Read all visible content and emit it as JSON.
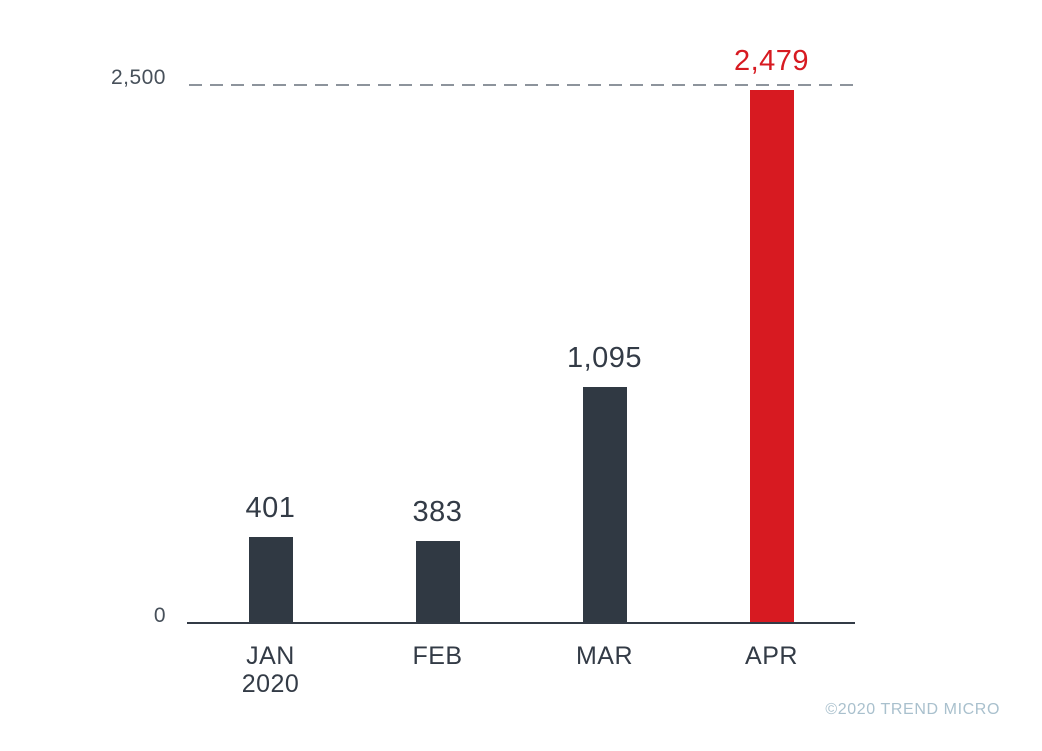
{
  "chart_data": {
    "type": "bar",
    "title": "",
    "xlabel": "",
    "ylabel": "",
    "categories": [
      [
        "JAN",
        "2020"
      ],
      [
        "FEB"
      ],
      [
        "MAR"
      ],
      [
        "APR"
      ]
    ],
    "values": [
      401,
      383,
      1095,
      2479
    ],
    "value_labels": [
      "401",
      "383",
      "1,095",
      "2,479"
    ],
    "ylim": [
      0,
      2500
    ],
    "yticks": [
      {
        "value": 0,
        "label": "0"
      },
      {
        "value": 2500,
        "label": "2,500"
      }
    ],
    "reference_line": {
      "value": 2500,
      "style": "dashed"
    },
    "highlight_index": 3,
    "grid": "off",
    "legend": "none"
  },
  "colors": {
    "background": "#ffffff",
    "bar": "#303943",
    "highlight": "#d71a21",
    "axis_line": "#333b46",
    "reference_line": "#8d949c",
    "tick_label": "#47505a",
    "value_label": "#333b46",
    "category_label": "#333b46",
    "copyright": "#a9c0cd"
  },
  "footer": {
    "copyright": "©2020 TREND MICRO"
  }
}
